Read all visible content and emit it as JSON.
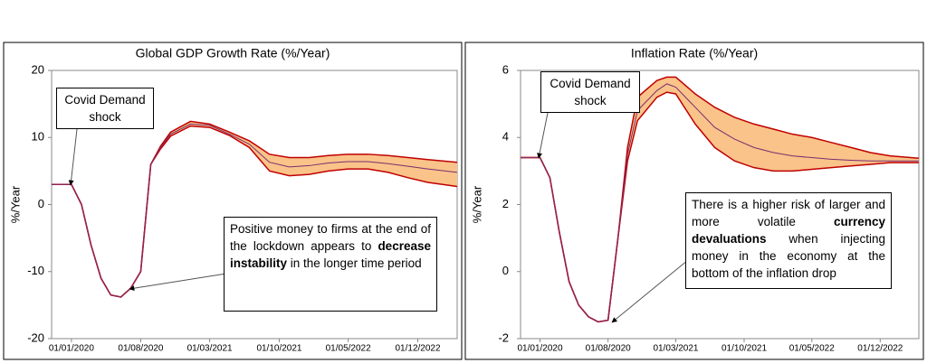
{
  "chart_data": [
    {
      "type": "fan",
      "title": "Global GDP Growth Rate (%/Year)",
      "y_label": "%/Year",
      "x": [
        "2019-11-01",
        "2020-01-01",
        "2020-02-01",
        "2020-03-01",
        "2020-04-01",
        "2020-05-01",
        "2020-06-01",
        "2020-07-01",
        "2020-08-01",
        "2020-09-01",
        "2020-10-01",
        "2020-11-01",
        "2021-01-01",
        "2021-03-01",
        "2021-05-01",
        "2021-07-01",
        "2021-09-01",
        "2021-11-01",
        "2022-01-01",
        "2022-03-01",
        "2022-05-01",
        "2022-07-01",
        "2022-09-01",
        "2022-11-01",
        "2023-01-01",
        "2023-04-01"
      ],
      "xlim": [
        "2019-11-01",
        "2023-04-01"
      ],
      "xticks": [
        {
          "value": "2020-01-01",
          "label": "01/01/2020"
        },
        {
          "value": "2020-08-01",
          "label": "01/08/2020"
        },
        {
          "value": "2021-03-01",
          "label": "01/03/2021"
        },
        {
          "value": "2021-10-01",
          "label": "01/10/2021"
        },
        {
          "value": "2022-05-01",
          "label": "01/05/2022"
        },
        {
          "value": "2022-12-01",
          "label": "01/12/2022"
        }
      ],
      "ylim": [
        -20,
        20
      ],
      "yticks": [
        -20,
        -10,
        0,
        10,
        20
      ],
      "band": {
        "color": "#f9c38a",
        "edge_color": "#c00000",
        "lower": [
          3,
          3,
          0,
          -6,
          -11,
          -13.5,
          -13.8,
          -12.5,
          -10,
          6,
          8.3,
          10.2,
          11.7,
          11.5,
          10.3,
          8.5,
          5,
          4.3,
          4.5,
          5,
          5.3,
          5.3,
          4.8,
          4,
          3.3,
          2.7
        ],
        "upper": [
          3,
          3,
          0,
          -6,
          -11,
          -13.5,
          -13.8,
          -12.5,
          -10,
          6,
          8.7,
          10.8,
          12.4,
          12,
          10.8,
          9.5,
          7.5,
          7,
          7,
          7.3,
          7.5,
          7.5,
          7.3,
          7,
          6.7,
          6.3
        ]
      },
      "series": [
        {
          "color": "#7b2d6e",
          "values": [
            3,
            3,
            0,
            -6,
            -11,
            -13.5,
            -13.8,
            -12.5,
            -10,
            6,
            8.5,
            10.5,
            12,
            11.8,
            10.5,
            9,
            6.3,
            5.6,
            5.8,
            6.2,
            6.4,
            6.4,
            6.1,
            5.7,
            5.3,
            4.8
          ]
        }
      ],
      "annotations": [
        {
          "runs": [
            {
              "text": "Covid Demand shock"
            }
          ]
        },
        {
          "runs": [
            {
              "text": "Positive money to firms at the end of the lockdown appears to "
            },
            {
              "text": "decrease instability",
              "bold": true
            },
            {
              "text": " in the longer time period"
            }
          ]
        }
      ]
    },
    {
      "type": "fan",
      "title": "Inflation Rate (%/Year)",
      "y_label": "%/Year",
      "x": [
        "2019-11-01",
        "2020-01-01",
        "2020-02-01",
        "2020-03-01",
        "2020-04-01",
        "2020-05-01",
        "2020-06-01",
        "2020-07-01",
        "2020-08-01",
        "2020-09-01",
        "2020-10-01",
        "2020-11-01",
        "2021-01-01",
        "2021-02-01",
        "2021-03-01",
        "2021-05-01",
        "2021-07-01",
        "2021-09-01",
        "2021-11-01",
        "2022-01-01",
        "2022-03-01",
        "2022-05-01",
        "2022-07-01",
        "2022-09-01",
        "2022-11-01",
        "2023-01-01",
        "2023-04-01"
      ],
      "xlim": [
        "2019-11-01",
        "2023-04-01"
      ],
      "xticks": [
        {
          "value": "2020-01-01",
          "label": "01/01/2020"
        },
        {
          "value": "2020-08-01",
          "label": "01/08/2020"
        },
        {
          "value": "2021-03-01",
          "label": "01/03/2021"
        },
        {
          "value": "2021-10-01",
          "label": "01/10/2021"
        },
        {
          "value": "2022-05-01",
          "label": "01/05/2022"
        },
        {
          "value": "2022-12-01",
          "label": "01/12/2022"
        }
      ],
      "ylim": [
        -2,
        6
      ],
      "yticks": [
        -2,
        0,
        2,
        4,
        6
      ],
      "band": {
        "color": "#f9c38a",
        "edge_color": "#c00000",
        "lower": [
          3.4,
          3.4,
          2.8,
          1.2,
          -0.3,
          -1,
          -1.35,
          -1.5,
          -1.45,
          1,
          3.3,
          4.5,
          5.2,
          5.35,
          5.3,
          4.4,
          3.7,
          3.3,
          3.1,
          3,
          3,
          3.05,
          3.1,
          3.15,
          3.2,
          3.25,
          3.25
        ],
        "upper": [
          3.4,
          3.4,
          2.8,
          1.2,
          -0.3,
          -1,
          -1.35,
          -1.5,
          -1.45,
          1,
          3.7,
          5.2,
          5.7,
          5.8,
          5.8,
          5.3,
          4.9,
          4.6,
          4.4,
          4.25,
          4.1,
          4,
          3.85,
          3.7,
          3.55,
          3.45,
          3.38
        ]
      },
      "series": [
        {
          "color": "#7b2d6e",
          "values": [
            3.4,
            3.4,
            2.8,
            1.2,
            -0.3,
            -1,
            -1.35,
            -1.5,
            -1.45,
            1,
            3.5,
            4.8,
            5.4,
            5.6,
            5.5,
            4.9,
            4.3,
            3.95,
            3.7,
            3.55,
            3.45,
            3.4,
            3.35,
            3.32,
            3.3,
            3.3,
            3.3
          ]
        }
      ],
      "annotations": [
        {
          "runs": [
            {
              "text": "Covid Demand shock"
            }
          ]
        },
        {
          "runs": [
            {
              "text": "There is a higher risk of larger and more volatile "
            },
            {
              "text": "currency devaluations",
              "bold": true
            },
            {
              "text": " when injecting money in the economy at the bottom of the inflation drop"
            }
          ]
        }
      ]
    }
  ]
}
